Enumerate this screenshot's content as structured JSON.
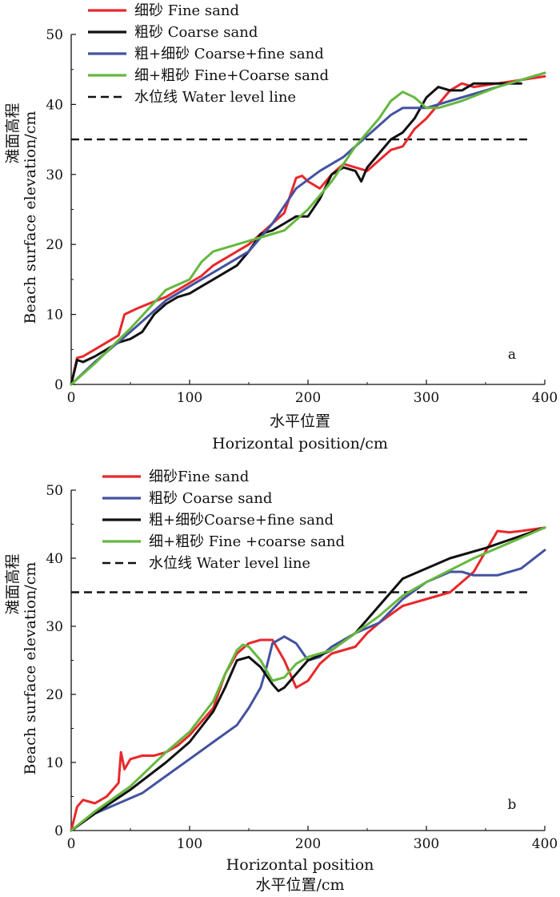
{
  "chart_data": [
    {
      "panel": "a",
      "type": "line",
      "xlabel_cn": "水平位置",
      "xlabel_en": "Horizontal position/cm",
      "ylabel_cn": "滩面高程",
      "ylabel_en": "Beach surface elevation/cm",
      "xlim": [
        0,
        400
      ],
      "ylim": [
        0,
        50
      ],
      "xticks": [
        0,
        100,
        200,
        300,
        400
      ],
      "yticks": [
        0,
        10,
        20,
        30,
        40,
        50
      ],
      "legend_position": "top-left",
      "water_level": 35,
      "series": [
        {
          "name": "细砂 Fine sand",
          "color": "#e8282b",
          "x": [
            0,
            5,
            10,
            20,
            30,
            40,
            45,
            55,
            65,
            80,
            90,
            100,
            110,
            120,
            130,
            140,
            150,
            160,
            170,
            180,
            185,
            190,
            195,
            200,
            210,
            220,
            230,
            240,
            250,
            260,
            270,
            280,
            290,
            300,
            310,
            320,
            330,
            340,
            360,
            380,
            400
          ],
          "y": [
            0,
            3.8,
            4,
            5,
            6,
            7,
            10,
            10.8,
            11.5,
            12.5,
            13.5,
            14.5,
            15.5,
            17,
            18,
            19,
            20,
            21.5,
            23,
            24.5,
            27,
            29.5,
            29.8,
            29,
            28,
            30,
            31.5,
            31,
            30.5,
            32,
            33.5,
            34,
            36.5,
            38,
            40,
            42,
            43,
            42.5,
            43,
            43.5,
            44
          ]
        },
        {
          "name": "粗砂 Coarse sand",
          "color": "#111111",
          "x": [
            0,
            5,
            10,
            20,
            30,
            40,
            50,
            60,
            70,
            80,
            90,
            100,
            110,
            120,
            140,
            150,
            160,
            170,
            180,
            190,
            200,
            210,
            220,
            230,
            240,
            245,
            250,
            260,
            270,
            280,
            290,
            300,
            310,
            320,
            330,
            340,
            360,
            380
          ],
          "y": [
            0,
            3.5,
            3.2,
            4,
            5,
            6,
            6.5,
            7.5,
            10,
            11.5,
            12.5,
            13,
            14,
            15,
            17,
            19,
            21.5,
            22,
            23,
            24,
            24,
            26.5,
            30,
            31,
            30.5,
            29,
            31,
            33,
            35,
            36,
            38,
            41,
            42.5,
            42,
            42,
            43,
            43,
            43
          ]
        },
        {
          "name": "粗+细砂 Coarse+fine sand",
          "color": "#4452a0",
          "x": [
            0,
            20,
            50,
            80,
            100,
            120,
            150,
            170,
            190,
            210,
            230,
            250,
            270,
            280,
            300,
            320,
            350,
            400
          ],
          "y": [
            0,
            3.2,
            7.5,
            12,
            14,
            16,
            19,
            23,
            28,
            30.5,
            32.5,
            35.5,
            38.5,
            39.5,
            39.5,
            40.5,
            42,
            44.5
          ]
        },
        {
          "name": "细+粗砂 Fine+Coarse sand",
          "color": "#66b83f",
          "x": [
            0,
            20,
            50,
            80,
            100,
            110,
            120,
            130,
            140,
            160,
            180,
            200,
            220,
            240,
            260,
            270,
            280,
            290,
            300,
            310,
            330,
            360,
            400
          ],
          "y": [
            0,
            3,
            8,
            13.5,
            15,
            17.5,
            19,
            19.5,
            20,
            21,
            22,
            25,
            29,
            34,
            38,
            40.5,
            41.8,
            41,
            39.5,
            39.5,
            40.5,
            42.5,
            44.5
          ]
        }
      ]
    },
    {
      "panel": "b",
      "type": "line",
      "xlabel_cn": "水平位置",
      "xlabel_en": "Horizontal position",
      "xlabel_unit": "/cm",
      "ylabel_cn": "滩面高程",
      "ylabel_en": "Beach surface elevation/cm",
      "xlim": [
        0,
        400
      ],
      "ylim": [
        0,
        50
      ],
      "xticks": [
        0,
        100,
        200,
        300,
        400
      ],
      "yticks": [
        0,
        10,
        20,
        30,
        40,
        50
      ],
      "legend_position": "top-left",
      "water_level": 35,
      "series": [
        {
          "name": "细砂Fine sand",
          "color": "#e8282b",
          "x": [
            0,
            5,
            10,
            20,
            30,
            40,
            42,
            45,
            50,
            60,
            70,
            80,
            90,
            100,
            110,
            120,
            130,
            140,
            150,
            160,
            170,
            180,
            190,
            200,
            210,
            220,
            240,
            250,
            260,
            280,
            300,
            320,
            340,
            350,
            360,
            370,
            380,
            400
          ],
          "y": [
            0,
            3.5,
            4.5,
            4,
            5,
            7,
            11.5,
            9,
            10.5,
            11,
            11,
            11.5,
            12.5,
            14,
            16,
            18,
            23,
            26,
            27.5,
            28,
            28,
            25,
            21,
            22,
            24.5,
            26,
            27,
            29,
            30.5,
            33,
            34,
            35,
            38,
            41,
            44,
            43.8,
            44,
            44.5
          ]
        },
        {
          "name": "粗砂 Coarse sand",
          "color": "#4452a0",
          "x": [
            0,
            20,
            40,
            60,
            80,
            100,
            120,
            140,
            150,
            160,
            165,
            170,
            180,
            190,
            200,
            210,
            220,
            240,
            260,
            280,
            300,
            320,
            330,
            340,
            360,
            380,
            400
          ],
          "y": [
            0,
            2.5,
            4,
            5.5,
            8,
            10.5,
            13,
            15.5,
            18,
            21,
            24,
            27.5,
            28.5,
            27.5,
            25,
            25.5,
            27,
            29,
            30.5,
            34,
            36.5,
            38,
            38,
            37.5,
            37.5,
            38.5,
            41.2
          ]
        },
        {
          "name": "粗+细砂Coarse+fine sand",
          "color": "#111111",
          "x": [
            0,
            20,
            50,
            80,
            100,
            120,
            130,
            140,
            150,
            160,
            170,
            175,
            180,
            190,
            200,
            220,
            240,
            260,
            280,
            300,
            320,
            350,
            400
          ],
          "y": [
            0,
            2.5,
            6,
            10,
            13,
            17.5,
            21,
            25,
            25.5,
            24,
            21.5,
            20.5,
            21,
            23,
            25,
            26.5,
            29,
            33,
            37,
            38.5,
            40,
            41.5,
            44.5
          ]
        },
        {
          "name": "细+粗砂 Fine +coarse sand",
          "color": "#66b83f",
          "x": [
            0,
            20,
            50,
            80,
            100,
            120,
            130,
            140,
            145,
            150,
            160,
            170,
            180,
            190,
            200,
            220,
            240,
            260,
            280,
            300,
            340,
            400
          ],
          "y": [
            0,
            2.8,
            6.5,
            11.5,
            14.5,
            19,
            23,
            26.5,
            27.3,
            27,
            25,
            22,
            22.5,
            24.5,
            25.5,
            26.5,
            29,
            31.5,
            34.5,
            36.5,
            40,
            44.5
          ]
        }
      ]
    }
  ],
  "legend": {
    "a": {
      "water_level_label": "水位线 Water level line"
    },
    "b": {
      "water_level_label": "水位线 Water level line"
    }
  }
}
